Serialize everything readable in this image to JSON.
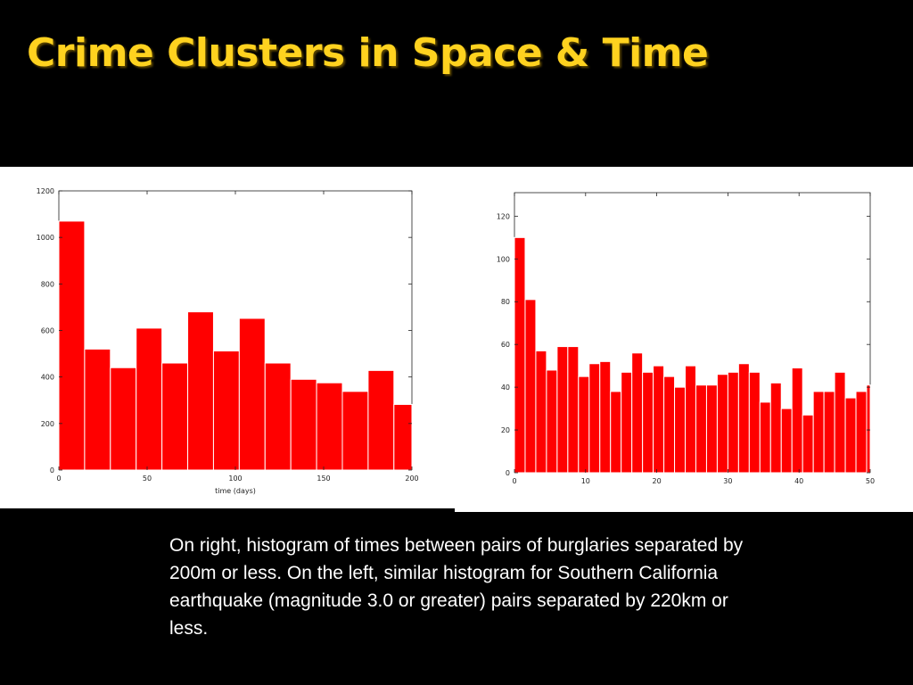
{
  "slide": {
    "title": "Crime Clusters in Space & Time",
    "caption": "On right, histogram of times between pairs of burglaries separated by 200m or less.  On the left, similar histogram for Southern California earthquake (magnitude 3.0 or greater) pairs separated by 220km or less.",
    "colors": {
      "background": "#000000",
      "title": "#ffd21f",
      "bar": "#ff0000",
      "caption": "#ffffff"
    }
  },
  "chart_data": [
    {
      "type": "bar",
      "title": "",
      "xlabel": "time (days)",
      "ylabel": "",
      "xlim": [
        0,
        200
      ],
      "ylim": [
        0,
        1200
      ],
      "x_ticks": [
        0,
        50,
        100,
        150,
        200
      ],
      "y_ticks": [
        0,
        200,
        400,
        600,
        800,
        1000,
        1200
      ],
      "bin_width": 14.6,
      "values": [
        1070,
        520,
        440,
        610,
        460,
        680,
        512,
        652,
        460,
        390,
        375,
        338,
        428,
        282
      ],
      "grid": false,
      "legend": "none"
    },
    {
      "type": "bar",
      "title": "",
      "xlabel": "",
      "ylabel": "",
      "xlim": [
        0,
        50
      ],
      "ylim": [
        0,
        131
      ],
      "x_ticks": [
        0,
        10,
        20,
        30,
        40,
        50
      ],
      "y_ticks": [
        0,
        20,
        40,
        60,
        80,
        100,
        120
      ],
      "bin_width": 1.5,
      "values": [
        110,
        81,
        57,
        48,
        59,
        59,
        45,
        51,
        52,
        38,
        47,
        56,
        47,
        50,
        45,
        40,
        50,
        41,
        41,
        46,
        47,
        51,
        47,
        33,
        42,
        30,
        49,
        27,
        38,
        38,
        47,
        35,
        38,
        41,
        39
      ],
      "grid": false,
      "legend": "none"
    }
  ]
}
